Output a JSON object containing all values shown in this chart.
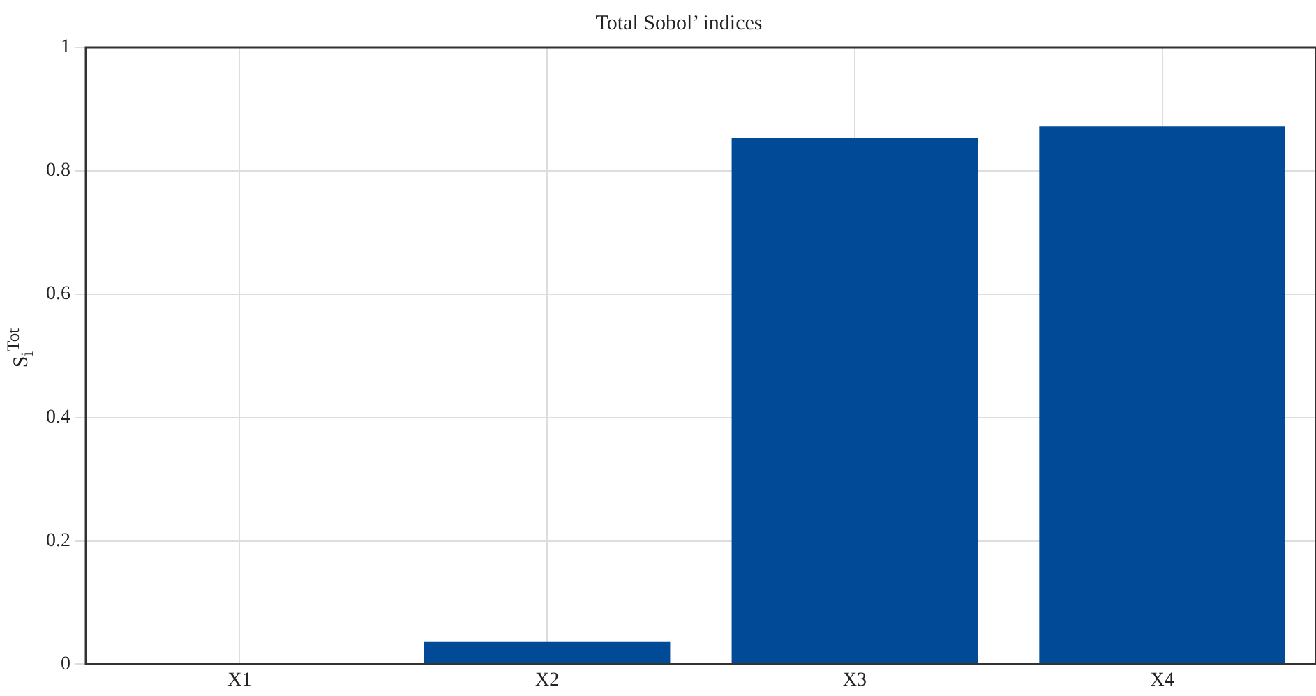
{
  "chart_data": {
    "type": "bar",
    "title": "Total Sobol’ indices",
    "ylabel": "S$_{i}$$^{Tot}$",
    "categories": [
      "X1",
      "X2",
      "X3",
      "X4"
    ],
    "values": [
      0,
      0.037,
      0.853,
      0.872
    ],
    "color": "#004a97",
    "ylim": [
      0,
      1
    ],
    "yticks": [
      0,
      0.2,
      0.4,
      0.6,
      0.8,
      1
    ],
    "grid": true,
    "legend": false
  }
}
